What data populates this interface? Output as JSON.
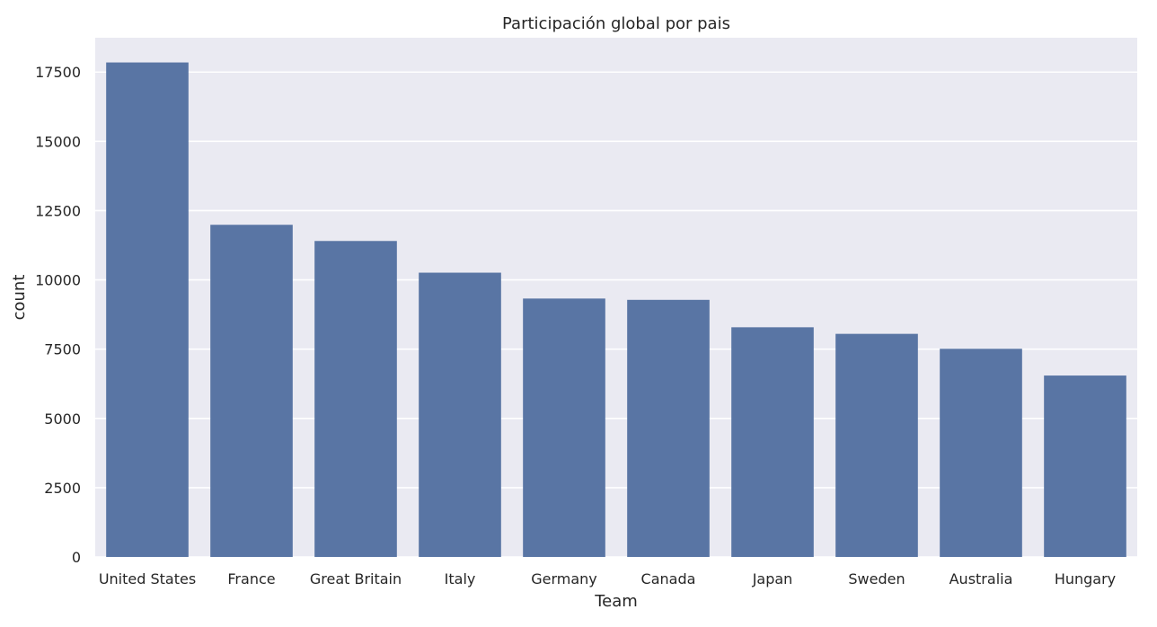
{
  "chart_data": {
    "type": "bar",
    "title": "Participación global por pais",
    "xlabel": "Team",
    "ylabel": "count",
    "categories": [
      "United States",
      "France",
      "Great Britain",
      "Italy",
      "Germany",
      "Canada",
      "Japan",
      "Sweden",
      "Australia",
      "Hungary"
    ],
    "values": [
      17847,
      11988,
      11404,
      10260,
      9326,
      9279,
      8289,
      8052,
      7513,
      6547
    ],
    "ylim": [
      0,
      18740
    ],
    "yticks": [
      0,
      2500,
      5000,
      7500,
      10000,
      12500,
      15000,
      17500
    ],
    "grid": true,
    "style": {
      "plot_background": "#EAEAF2",
      "bar_color": "#5975A4",
      "grid_color": "#FFFFFF"
    }
  }
}
